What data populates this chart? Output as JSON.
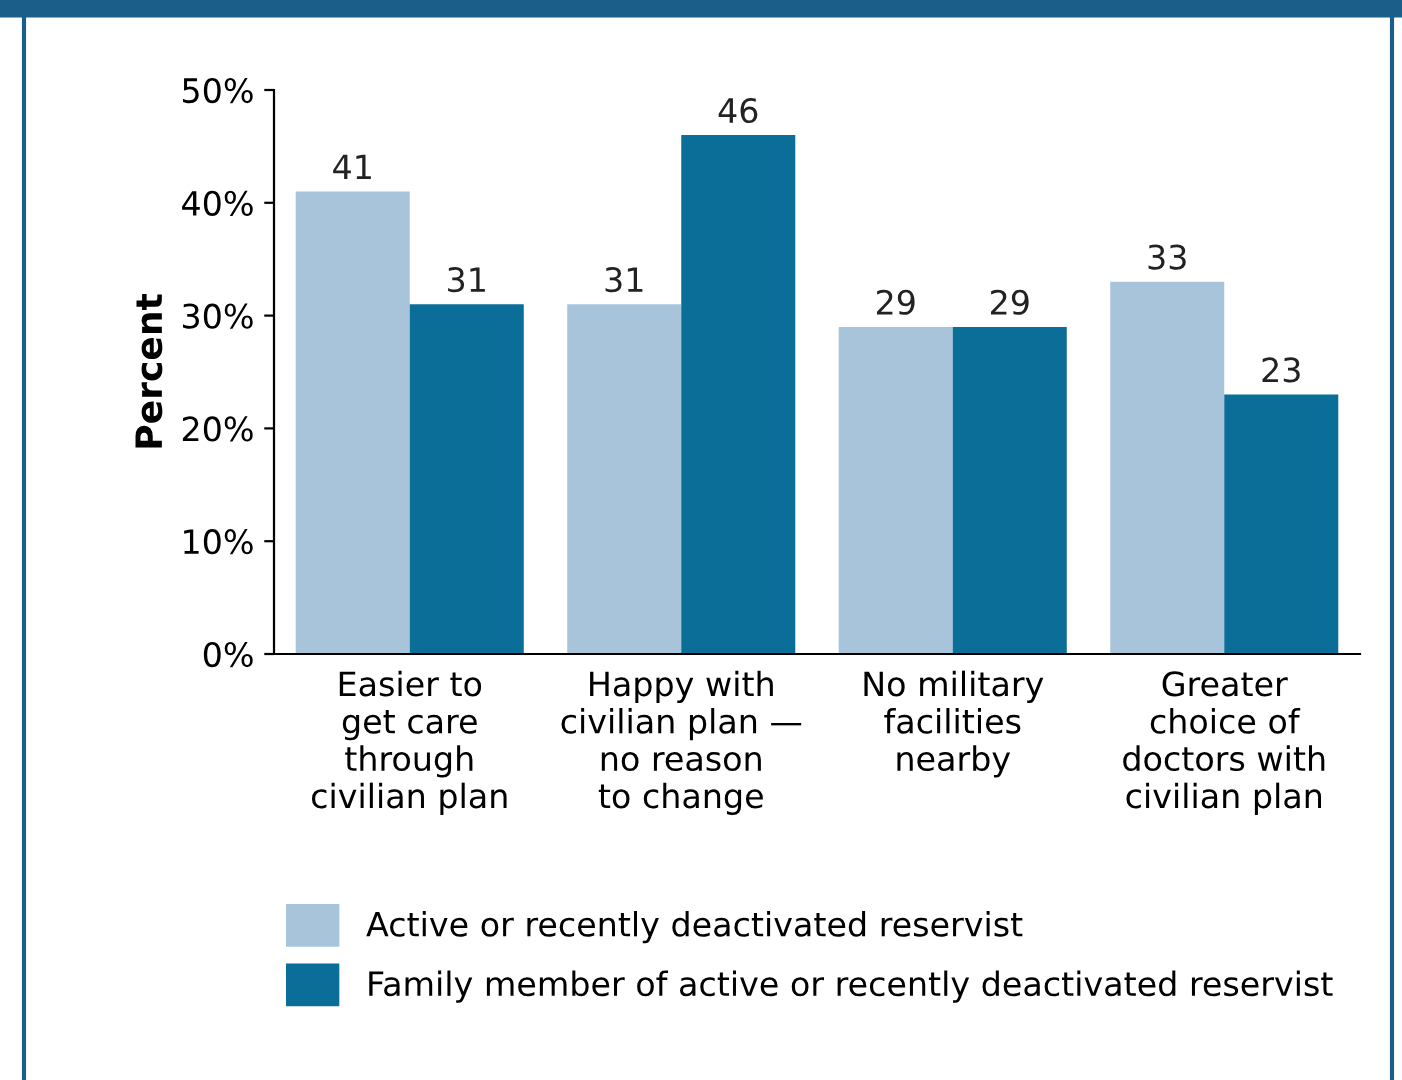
{
  "chart_data": {
    "type": "bar",
    "ylabel": "Percent",
    "categories": [
      "Easier to\nget care\nthrough\ncivilian plan",
      "Happy with\ncivilian plan —\nno reason\nto change",
      "No military\nfacilities\nnearby",
      "Greater\nchoice of\ndoctors with\ncivilian plan"
    ],
    "series": [
      {
        "name": "Active or recently deactivated reservist",
        "color": "#a8c4db",
        "values": [
          41,
          31,
          29,
          33
        ]
      },
      {
        "name": "Family member of active or recently deactivated reservist",
        "color": "#0b6e99",
        "values": [
          31,
          46,
          29,
          23
        ]
      }
    ],
    "ylim": [
      0,
      50
    ],
    "yticks": [
      {
        "value": 0,
        "label": "0%"
      },
      {
        "value": 10,
        "label": "10%"
      },
      {
        "value": 20,
        "label": "20%"
      },
      {
        "value": 30,
        "label": "30%"
      },
      {
        "value": 40,
        "label": "40%"
      },
      {
        "value": 50,
        "label": "50%"
      }
    ],
    "data_labels": true,
    "grid": false,
    "legend": "bottom"
  }
}
